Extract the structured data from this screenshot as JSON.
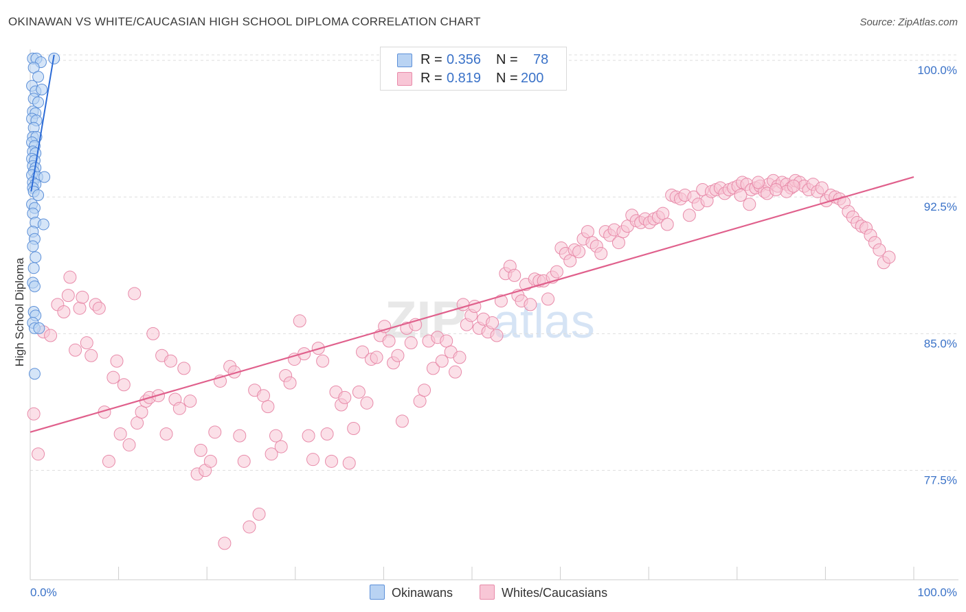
{
  "header": {
    "title": "OKINAWAN VS WHITE/CAUCASIAN HIGH SCHOOL DIPLOMA CORRELATION CHART",
    "source": "Source: ZipAtlas.com"
  },
  "watermark": {
    "zip": "ZIP",
    "atlas": "atlas"
  },
  "stats": {
    "r_label": "R =",
    "n_label": "N =",
    "rows": [
      {
        "series": "Okinawans",
        "r": "0.356",
        "n": "78"
      },
      {
        "series": "Whites/Caucasians",
        "r": "0.819",
        "n": "200"
      }
    ]
  },
  "legend": {
    "items": [
      "Okinawans",
      "Whites/Caucasians"
    ]
  },
  "colors": {
    "okinawan_fill": "#b9d3f3",
    "okinawan_stroke": "#5b8fd8",
    "okinawan_line": "#2a6ad6",
    "white_fill": "#f8c6d6",
    "white_stroke": "#e88aa9",
    "white_line": "#e0608c",
    "tick_label": "#3a72c8",
    "grid": "#dddddd"
  },
  "chart_data": {
    "type": "scatter",
    "title": "OKINAWAN VS WHITE/CAUCASIAN HIGH SCHOOL DIPLOMA CORRELATION CHART",
    "xlabel": "",
    "ylabel": "High School Diploma",
    "x_tick_labels": [
      "0.0%",
      "100.0%"
    ],
    "y_ticks": [
      77.5,
      85.0,
      92.5,
      100.0
    ],
    "y_tick_labels": [
      "77.5%",
      "85.0%",
      "92.5%",
      "100.0%"
    ],
    "xlim": [
      0,
      100
    ],
    "ylim": [
      71.5,
      100.6
    ],
    "grid": true,
    "legend_position": "bottom-center",
    "series": [
      {
        "name": "Okinawans",
        "r": 0.356,
        "n": 78,
        "trend": {
          "x": [
            0.1,
            2.7
          ],
          "y": [
            92.8,
            100.3
          ]
        },
        "points": [
          [
            0.3,
            100.1
          ],
          [
            0.7,
            100.1
          ],
          [
            1.2,
            99.9
          ],
          [
            2.7,
            100.1
          ],
          [
            0.4,
            99.6
          ],
          [
            0.9,
            99.1
          ],
          [
            0.2,
            98.6
          ],
          [
            0.6,
            98.3
          ],
          [
            1.3,
            98.4
          ],
          [
            0.4,
            97.9
          ],
          [
            0.9,
            97.7
          ],
          [
            0.3,
            97.2
          ],
          [
            0.6,
            97.1
          ],
          [
            0.2,
            96.8
          ],
          [
            0.7,
            96.7
          ],
          [
            0.4,
            96.3
          ],
          [
            0.3,
            95.8
          ],
          [
            0.7,
            95.8
          ],
          [
            0.2,
            95.5
          ],
          [
            0.5,
            95.3
          ],
          [
            0.3,
            95.0
          ],
          [
            0.6,
            94.9
          ],
          [
            0.2,
            94.6
          ],
          [
            0.5,
            94.5
          ],
          [
            0.3,
            94.2
          ],
          [
            0.6,
            94.1
          ],
          [
            0.4,
            93.9
          ],
          [
            0.2,
            93.7
          ],
          [
            0.8,
            93.6
          ],
          [
            1.6,
            93.6
          ],
          [
            0.3,
            93.3
          ],
          [
            0.6,
            93.2
          ],
          [
            0.3,
            93.0
          ],
          [
            0.4,
            92.8
          ],
          [
            0.9,
            92.6
          ],
          [
            0.2,
            92.1
          ],
          [
            0.5,
            91.9
          ],
          [
            0.3,
            91.6
          ],
          [
            0.6,
            91.1
          ],
          [
            1.5,
            91.0
          ],
          [
            0.3,
            90.6
          ],
          [
            0.5,
            90.2
          ],
          [
            0.3,
            89.8
          ],
          [
            0.6,
            89.2
          ],
          [
            0.4,
            88.6
          ],
          [
            0.3,
            87.8
          ],
          [
            0.5,
            87.6
          ],
          [
            0.4,
            86.2
          ],
          [
            0.6,
            86.0
          ],
          [
            0.3,
            85.6
          ],
          [
            0.5,
            85.3
          ],
          [
            1.0,
            85.3
          ],
          [
            0.5,
            82.8
          ]
        ]
      },
      {
        "name": "Whites/Caucasians",
        "r": 0.819,
        "n": 200,
        "trend": {
          "x": [
            0,
            100
          ],
          "y": [
            79.6,
            93.6
          ]
        },
        "points": [
          [
            0.4,
            80.6
          ],
          [
            0.9,
            78.4
          ],
          [
            1.5,
            85.1
          ],
          [
            2.3,
            84.9
          ],
          [
            3.1,
            86.6
          ],
          [
            3.8,
            86.2
          ],
          [
            4.3,
            87.1
          ],
          [
            4.5,
            88.1
          ],
          [
            5.1,
            84.1
          ],
          [
            5.6,
            86.4
          ],
          [
            5.9,
            87.0
          ],
          [
            6.4,
            84.5
          ],
          [
            6.9,
            83.8
          ],
          [
            7.4,
            86.6
          ],
          [
            7.8,
            86.4
          ],
          [
            8.4,
            80.7
          ],
          [
            8.9,
            78.0
          ],
          [
            9.4,
            82.6
          ],
          [
            9.8,
            83.5
          ],
          [
            10.2,
            79.5
          ],
          [
            10.6,
            82.2
          ],
          [
            11.2,
            78.9
          ],
          [
            11.8,
            87.2
          ],
          [
            12.1,
            80.1
          ],
          [
            12.6,
            80.7
          ],
          [
            13.1,
            81.3
          ],
          [
            13.5,
            81.5
          ],
          [
            13.9,
            85.0
          ],
          [
            14.5,
            81.6
          ],
          [
            14.9,
            83.8
          ],
          [
            15.4,
            79.5
          ],
          [
            15.9,
            83.5
          ],
          [
            16.4,
            81.4
          ],
          [
            16.9,
            80.9
          ],
          [
            17.4,
            83.1
          ],
          [
            18.1,
            81.3
          ],
          [
            18.9,
            77.3
          ],
          [
            19.3,
            78.6
          ],
          [
            19.8,
            77.5
          ],
          [
            20.4,
            78.0
          ],
          [
            20.9,
            79.6
          ],
          [
            21.5,
            82.4
          ],
          [
            22.0,
            73.5
          ],
          [
            22.6,
            83.2
          ],
          [
            23.1,
            82.9
          ],
          [
            23.7,
            79.4
          ],
          [
            24.2,
            78.0
          ],
          [
            24.8,
            74.4
          ],
          [
            25.4,
            81.9
          ],
          [
            25.9,
            75.1
          ],
          [
            26.4,
            81.6
          ],
          [
            26.9,
            81.0
          ],
          [
            27.3,
            78.4
          ],
          [
            27.8,
            79.4
          ],
          [
            28.4,
            78.8
          ],
          [
            28.9,
            82.7
          ],
          [
            29.4,
            82.3
          ],
          [
            29.9,
            83.6
          ],
          [
            30.5,
            85.7
          ],
          [
            31.0,
            83.9
          ],
          [
            31.5,
            79.4
          ],
          [
            32.0,
            78.1
          ],
          [
            32.6,
            84.2
          ],
          [
            33.1,
            83.5
          ],
          [
            33.6,
            79.5
          ],
          [
            34.1,
            78.0
          ],
          [
            34.6,
            81.8
          ],
          [
            35.2,
            81.1
          ],
          [
            35.6,
            81.5
          ],
          [
            36.1,
            77.9
          ],
          [
            36.6,
            79.8
          ],
          [
            37.2,
            81.8
          ],
          [
            37.6,
            84.0
          ],
          [
            38.1,
            81.2
          ],
          [
            38.6,
            83.6
          ],
          [
            39.2,
            83.7
          ],
          [
            39.6,
            84.9
          ],
          [
            40.1,
            85.4
          ],
          [
            40.6,
            84.6
          ],
          [
            41.1,
            83.4
          ],
          [
            41.6,
            83.8
          ],
          [
            42.1,
            80.2
          ],
          [
            42.6,
            85.3
          ],
          [
            43.1,
            84.5
          ],
          [
            43.6,
            85.5
          ],
          [
            44.1,
            81.3
          ],
          [
            44.6,
            81.9
          ],
          [
            45.1,
            84.6
          ],
          [
            45.6,
            83.1
          ],
          [
            46.1,
            84.8
          ],
          [
            46.6,
            83.5
          ],
          [
            47.1,
            84.6
          ],
          [
            47.6,
            84.0
          ],
          [
            48.1,
            82.9
          ],
          [
            48.6,
            83.7
          ],
          [
            49.0,
            86.6
          ],
          [
            49.4,
            85.5
          ],
          [
            49.9,
            86.0
          ],
          [
            50.3,
            86.5
          ],
          [
            50.8,
            85.3
          ],
          [
            51.3,
            85.8
          ],
          [
            51.8,
            85.1
          ],
          [
            52.3,
            85.6
          ],
          [
            52.8,
            84.9
          ],
          [
            53.3,
            86.8
          ],
          [
            53.8,
            88.3
          ],
          [
            54.3,
            88.7
          ],
          [
            54.8,
            88.2
          ],
          [
            55.2,
            87.1
          ],
          [
            55.6,
            86.8
          ],
          [
            56.1,
            87.7
          ],
          [
            56.6,
            86.6
          ],
          [
            57.1,
            88.0
          ],
          [
            57.6,
            87.9
          ],
          [
            58.1,
            87.9
          ],
          [
            58.6,
            86.9
          ],
          [
            59.1,
            88.1
          ],
          [
            59.6,
            88.4
          ],
          [
            60.1,
            89.7
          ],
          [
            60.6,
            89.4
          ],
          [
            61.1,
            89.0
          ],
          [
            61.6,
            89.6
          ],
          [
            62.1,
            89.5
          ],
          [
            62.6,
            90.2
          ],
          [
            63.1,
            90.6
          ],
          [
            63.6,
            90.0
          ],
          [
            64.1,
            89.8
          ],
          [
            64.6,
            89.4
          ],
          [
            65.1,
            90.6
          ],
          [
            65.6,
            90.4
          ],
          [
            66.1,
            90.7
          ],
          [
            66.6,
            90.0
          ],
          [
            67.1,
            90.6
          ],
          [
            67.6,
            90.9
          ],
          [
            68.1,
            91.5
          ],
          [
            68.6,
            91.2
          ],
          [
            69.1,
            91.1
          ],
          [
            69.6,
            91.3
          ],
          [
            70.1,
            91.1
          ],
          [
            70.6,
            91.3
          ],
          [
            71.1,
            91.4
          ],
          [
            71.6,
            91.6
          ],
          [
            72.1,
            91.0
          ],
          [
            72.6,
            92.6
          ],
          [
            73.1,
            92.5
          ],
          [
            73.6,
            92.4
          ],
          [
            74.1,
            92.6
          ],
          [
            74.6,
            91.5
          ],
          [
            75.1,
            92.5
          ],
          [
            75.6,
            92.1
          ],
          [
            76.1,
            92.9
          ],
          [
            76.6,
            92.3
          ],
          [
            77.1,
            92.8
          ],
          [
            77.6,
            92.9
          ],
          [
            78.1,
            93.0
          ],
          [
            78.6,
            92.7
          ],
          [
            79.1,
            92.9
          ],
          [
            79.6,
            93.0
          ],
          [
            80.1,
            93.1
          ],
          [
            80.6,
            93.3
          ],
          [
            81.1,
            93.2
          ],
          [
            81.6,
            92.9
          ],
          [
            82.1,
            93.0
          ],
          [
            82.6,
            93.1
          ],
          [
            83.1,
            92.8
          ],
          [
            83.6,
            93.2
          ],
          [
            84.1,
            93.4
          ],
          [
            84.6,
            93.1
          ],
          [
            85.1,
            93.3
          ],
          [
            85.6,
            93.2
          ],
          [
            86.1,
            93.0
          ],
          [
            86.6,
            93.4
          ],
          [
            87.1,
            93.3
          ],
          [
            87.6,
            93.1
          ],
          [
            88.1,
            92.9
          ],
          [
            88.6,
            93.2
          ],
          [
            89.1,
            92.8
          ],
          [
            89.6,
            93.0
          ],
          [
            90.1,
            92.3
          ],
          [
            90.6,
            92.6
          ],
          [
            91.1,
            92.5
          ],
          [
            91.6,
            92.4
          ],
          [
            92.1,
            92.2
          ],
          [
            92.6,
            91.7
          ],
          [
            93.1,
            91.4
          ],
          [
            93.6,
            91.1
          ],
          [
            94.1,
            90.9
          ],
          [
            94.6,
            90.8
          ],
          [
            95.1,
            90.4
          ],
          [
            95.6,
            90.0
          ],
          [
            96.1,
            89.6
          ],
          [
            96.6,
            88.9
          ],
          [
            85.6,
            92.8
          ],
          [
            86.4,
            93.1
          ],
          [
            97.2,
            89.2
          ],
          [
            80.4,
            92.6
          ],
          [
            81.4,
            92.1
          ],
          [
            82.4,
            93.3
          ],
          [
            83.4,
            92.7
          ],
          [
            84.4,
            92.9
          ]
        ]
      }
    ]
  }
}
